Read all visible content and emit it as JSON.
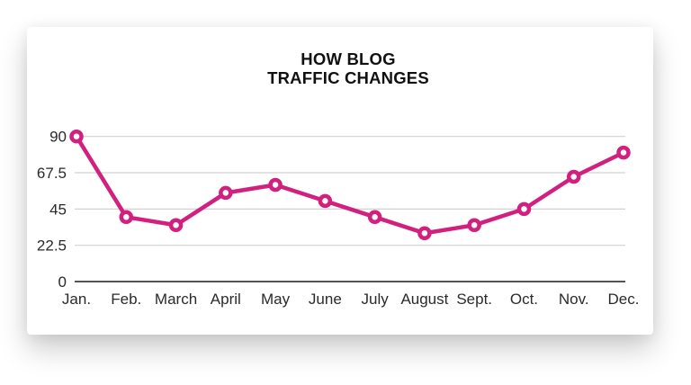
{
  "chart_data": {
    "type": "line",
    "title_lines": [
      "HOW BLOG",
      "TRAFFIC CHANGES"
    ],
    "title": "HOW BLOG TRAFFIC CHANGES",
    "categories": [
      "Jan.",
      "Feb.",
      "March",
      "April",
      "May",
      "June",
      "July",
      "August",
      "Sept.",
      "Oct.",
      "Nov.",
      "Dec."
    ],
    "values": [
      90,
      40,
      35,
      55,
      60,
      50,
      40,
      30,
      35,
      45,
      65,
      80
    ],
    "y_ticks": [
      0,
      22.5,
      45,
      67.5,
      90
    ],
    "y_tick_labels": [
      "0",
      "22.5",
      "45",
      "67.5",
      "90"
    ],
    "ylim": [
      0,
      90
    ],
    "xlabel": "",
    "ylabel": "",
    "grid": true,
    "legend_position": "none",
    "colors": {
      "line": "#d1207d",
      "marker_ring": "#d1207d",
      "marker_fill": "#ffffff",
      "gridline": "#d2d2d2",
      "zero_axis": "#3c3c3c",
      "tick_text": "#2a2a2a",
      "title_text": "#111111",
      "card_background": "#ffffff"
    }
  }
}
